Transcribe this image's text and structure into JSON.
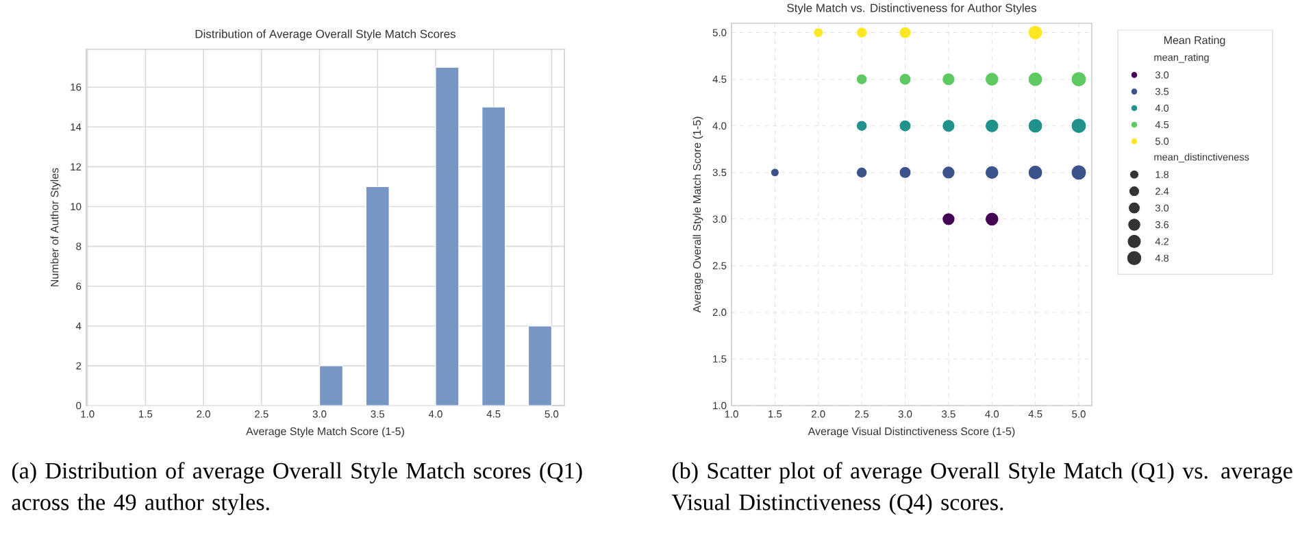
{
  "chart_data": [
    {
      "type": "histogram",
      "title": "Distribution of Average Overall Style Match Scores",
      "xlabel": "Average Style Match Score (1-5)",
      "ylabel": "Number of Author Styles",
      "color": "#7896c4",
      "grid": true,
      "bins": [
        1.0,
        1.2,
        1.4,
        1.6,
        1.8,
        2.0,
        2.2,
        2.4,
        2.6,
        2.8,
        3.0,
        3.2,
        3.4,
        3.6,
        3.8,
        4.0,
        4.2,
        4.4,
        4.6,
        4.8,
        5.0
      ],
      "values": [
        0,
        0,
        0,
        0,
        0,
        0,
        0,
        0,
        0,
        0,
        2,
        0,
        11,
        0,
        0,
        17,
        0,
        15,
        0,
        4
      ],
      "xlim": [
        0.99,
        5.11
      ],
      "ylim": [
        0,
        17.9
      ],
      "xticks": [
        {
          "value": 1,
          "label": "1.0"
        },
        1.5,
        {
          "value": 2,
          "label": "2.0"
        },
        2.5,
        {
          "value": 3,
          "label": "3.0"
        },
        3.5,
        {
          "value": 4,
          "label": "4.0"
        },
        4.5,
        {
          "value": 5,
          "label": "5.0"
        }
      ],
      "yticks": [
        0,
        2,
        4,
        6,
        8,
        10,
        12,
        14,
        16
      ],
      "annotations": [
        "(a) Distribution of average Overall Style Match scores (Q1) across the 49 author styles."
      ]
    },
    {
      "type": "bubble",
      "title": "Style Match vs. Distinctiveness for Author Styles",
      "xlabel": "Average Visual Distinctiveness Score (1-5)",
      "ylabel": "Average Overall Style Match Score (1-5)",
      "legend_title": "Mean Rating",
      "legend": "right",
      "grid": true,
      "series": [
        {
          "name": "3.0",
          "color": "#440154",
          "x": [
            3.5,
            4.0
          ],
          "values": [
            3.0,
            3.0
          ],
          "sizes": [
            3.5,
            4.0
          ]
        },
        {
          "name": "3.5",
          "color": "#3b528b",
          "x": [
            1.5,
            2.5,
            3.0,
            3.5,
            4.0,
            4.5,
            5.0
          ],
          "values": [
            3.5,
            3.5,
            3.5,
            3.5,
            3.5,
            3.5,
            3.5
          ],
          "sizes": [
            1.5,
            2.5,
            3.0,
            3.5,
            4.0,
            4.5,
            5.0
          ]
        },
        {
          "name": "4.0",
          "color": "#21918c",
          "x": [
            2.5,
            3.0,
            3.5,
            4.0,
            4.5,
            5.0
          ],
          "values": [
            4.0,
            4.0,
            4.0,
            4.0,
            4.0,
            4.0
          ],
          "sizes": [
            2.5,
            3.0,
            3.5,
            4.0,
            4.5,
            5.0
          ]
        },
        {
          "name": "4.5",
          "color": "#5ec962",
          "x": [
            2.5,
            3.0,
            3.5,
            4.0,
            4.5,
            5.0
          ],
          "values": [
            4.5,
            4.5,
            4.5,
            4.5,
            4.5,
            4.5
          ],
          "sizes": [
            2.5,
            3.0,
            3.5,
            4.0,
            4.5,
            5.0
          ]
        },
        {
          "name": "5.0",
          "color": "#fde725",
          "x": [
            2.0,
            2.5,
            3.0,
            4.5
          ],
          "values": [
            5.0,
            5.0,
            5.0,
            5.0
          ],
          "sizes": [
            2.0,
            2.5,
            3.0,
            4.5
          ]
        }
      ],
      "size_legend": [
        1.8,
        2.4,
        {
          "value": 3,
          "label": "3.0"
        },
        3.6,
        4.2,
        4.8
      ],
      "xlim": [
        1.0,
        5.15
      ],
      "ylim": [
        1.0,
        5.1
      ],
      "xticks": [
        {
          "value": 1,
          "label": "1.0"
        },
        1.5,
        {
          "value": 2,
          "label": "2.0"
        },
        2.5,
        {
          "value": 3,
          "label": "3.0"
        },
        3.5,
        {
          "value": 4,
          "label": "4.0"
        },
        4.5,
        {
          "value": 5,
          "label": "5.0"
        }
      ],
      "yticks": [
        {
          "value": 1,
          "label": "1.0"
        },
        1.5,
        {
          "value": 2,
          "label": "2.0"
        },
        2.5,
        {
          "value": 3,
          "label": "3.0"
        },
        3.5,
        {
          "value": 4,
          "label": "4.0"
        },
        4.5,
        {
          "value": 5,
          "label": "5.0"
        }
      ],
      "annotations": [
        "mean_rating",
        "mean_distinctiveness",
        "(b) Scatter plot of average Overall Style Match (Q1) vs. average Visual Distinctiveness (Q4) scores."
      ]
    }
  ]
}
